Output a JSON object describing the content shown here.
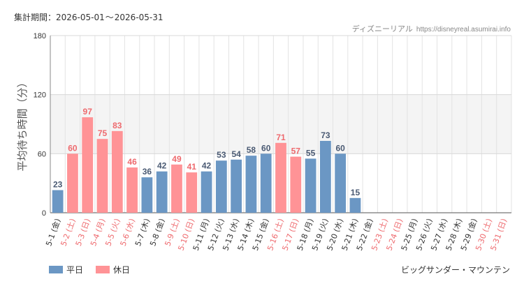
{
  "header": {
    "period_label": "集計期間：",
    "period_start": "2026-05-01",
    "period_sep": "〜",
    "period_end": "2026-05-31",
    "site_name": "ディズニーリアル",
    "site_url": "https://disneyreal.asumirai.info"
  },
  "footer": {
    "attraction": "ビッグサンダー・マウンテン"
  },
  "colors": {
    "weekday_bar": "#6b97c4",
    "holiday_bar": "#ff9396",
    "weekday_text": "#4a5a73",
    "holiday_text": "#ee6a6e",
    "band_fill": "#f4f4f4",
    "grid": "#e3e3e3"
  },
  "chart_data": {
    "type": "bar",
    "ylabel": "平均待ち時間（分）",
    "ylim": [
      0,
      180
    ],
    "yticks": [
      0,
      60,
      120,
      180
    ],
    "shaded_band": [
      60,
      120
    ],
    "legend": [
      {
        "key": "weekday",
        "label": "平日"
      },
      {
        "key": "holiday",
        "label": "休日"
      }
    ],
    "categories": [
      "5-1 (金)",
      "5-2 (土)",
      "5-3 (日)",
      "5-4 (月)",
      "5-5 (火)",
      "5-6 (水)",
      "5-7 (木)",
      "5-8 (金)",
      "5-9 (土)",
      "5-10 (日)",
      "5-11 (月)",
      "5-12 (火)",
      "5-13 (水)",
      "5-14 (木)",
      "5-15 (金)",
      "5-16 (土)",
      "5-17 (日)",
      "5-18 (月)",
      "5-19 (火)",
      "5-20 (水)",
      "5-21 (木)",
      "5-22 (金)",
      "5-23 (土)",
      "5-24 (日)",
      "5-25 (月)",
      "5-26 (火)",
      "5-27 (水)",
      "5-28 (木)",
      "5-29 (金)",
      "5-30 (土)",
      "5-31 (日)"
    ],
    "day_types": [
      "weekday",
      "holiday",
      "holiday",
      "holiday",
      "holiday",
      "holiday",
      "weekday",
      "weekday",
      "holiday",
      "holiday",
      "weekday",
      "weekday",
      "weekday",
      "weekday",
      "weekday",
      "holiday",
      "holiday",
      "weekday",
      "weekday",
      "weekday",
      "weekday",
      "weekday",
      "holiday",
      "holiday",
      "weekday",
      "weekday",
      "weekday",
      "weekday",
      "weekday",
      "holiday",
      "holiday"
    ],
    "values": [
      23,
      60,
      97,
      75,
      83,
      46,
      36,
      42,
      49,
      41,
      42,
      53,
      54,
      58,
      60,
      71,
      57,
      55,
      73,
      60,
      15,
      null,
      null,
      null,
      null,
      null,
      null,
      null,
      null,
      null,
      null
    ]
  }
}
